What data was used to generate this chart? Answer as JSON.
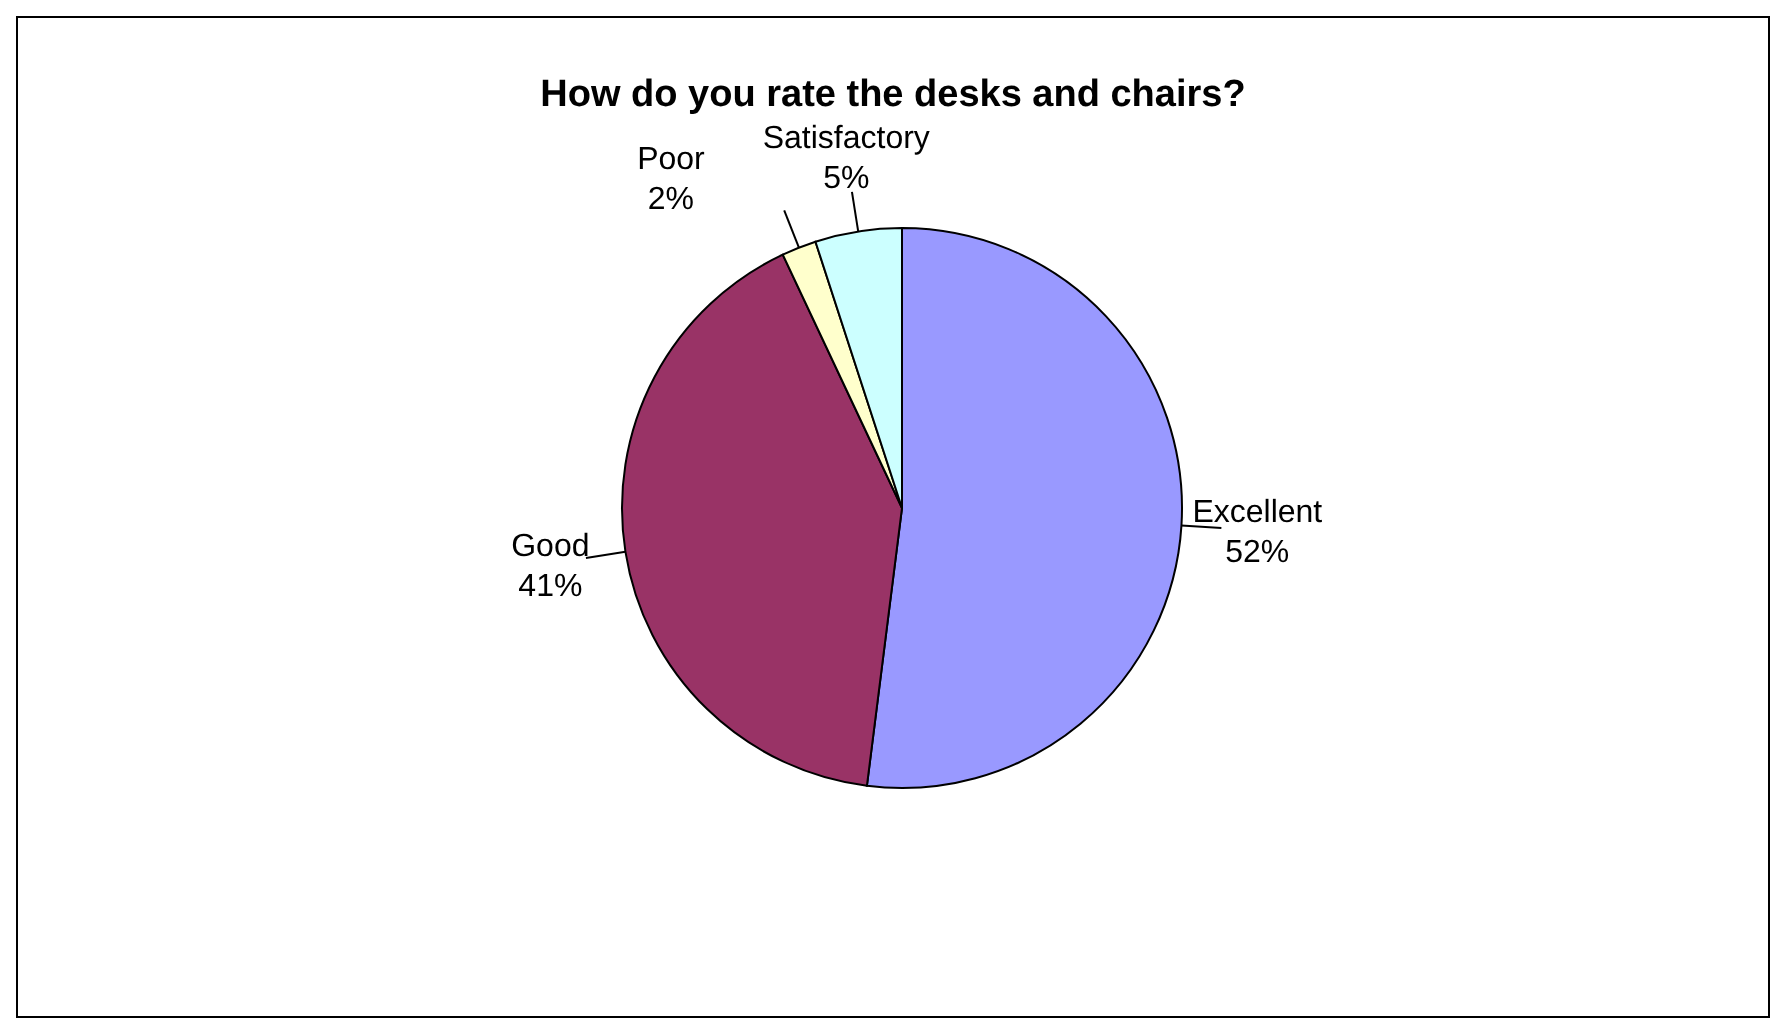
{
  "chart_data": {
    "type": "pie",
    "title": "How do you rate the desks and chairs?",
    "categories": [
      "Excellent",
      "Good",
      "Poor",
      "Satisfactory"
    ],
    "values": [
      52,
      41,
      2,
      5
    ],
    "value_labels": [
      "52%",
      "41%",
      "2%",
      "5%"
    ],
    "colors": [
      "#9999ff",
      "#993366",
      "#ffffcc",
      "#ccffff"
    ],
    "legend": false
  }
}
